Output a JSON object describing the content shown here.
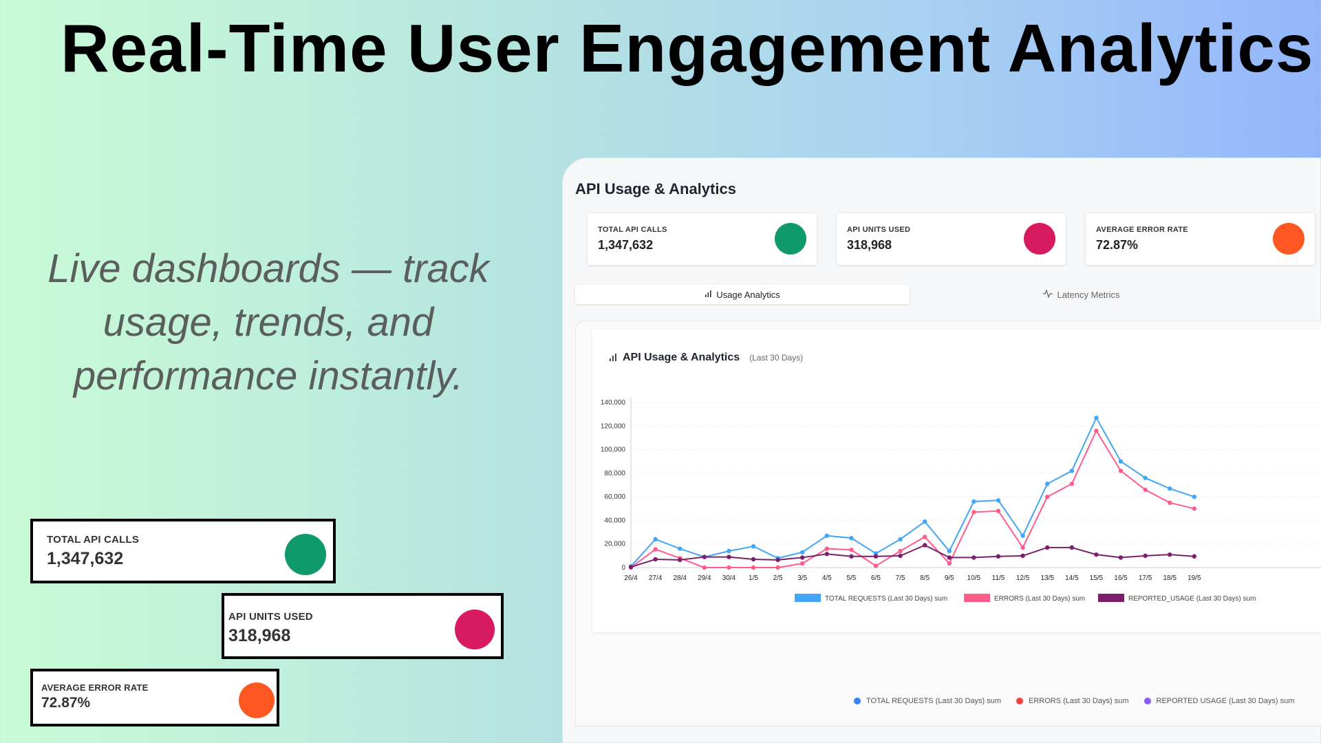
{
  "hero": {
    "title": "Real-Time User Engagement Analytics",
    "tagline_line1": "Live dashboards — track",
    "tagline_line2": "usage, trends, and",
    "tagline_line3": "performance instantly."
  },
  "colors": {
    "green": "#109a6b",
    "pink": "#d81b60",
    "orange": "#ff5722",
    "blue": "#42a5f5",
    "red": "#ff5c8a",
    "purple": "#7b1f6a"
  },
  "mini_cards": [
    {
      "label": "TOTAL API CALLS",
      "value": "1,347,632",
      "dot_color": "#109a6b"
    },
    {
      "label": "API UNITS USED",
      "value": "318,968",
      "dot_color": "#d81b60"
    },
    {
      "label": "AVERAGE ERROR RATE",
      "value": "72.87%",
      "dot_color": "#ff5722"
    }
  ],
  "panel": {
    "title": "API Usage & Analytics",
    "stats": [
      {
        "label": "TOTAL API CALLS",
        "value": "1,347,632",
        "dot_color": "#109a6b"
      },
      {
        "label": "API UNITS USED",
        "value": "318,968",
        "dot_color": "#d81b60"
      },
      {
        "label": "AVERAGE ERROR RATE",
        "value": "72.87%",
        "dot_color": "#ff5722"
      }
    ],
    "tabs": [
      {
        "label": "Usage Analytics",
        "icon": "bar-chart-icon"
      },
      {
        "label": "Latency Metrics",
        "icon": "pulse-icon"
      }
    ],
    "chart_title": "API Usage & Analytics",
    "chart_subtitle": "(Last 30 Days)",
    "legend_bottom": [
      {
        "label": "TOTAL REQUESTS (Last 30 Days) sum",
        "color": "#3b82f6"
      },
      {
        "label": "ERRORS (Last 30 Days) sum",
        "color": "#ef4444"
      },
      {
        "label": "REPORTED USAGE (Last 30 Days) sum",
        "color": "#8b5cf6"
      }
    ]
  },
  "chart_data": {
    "type": "line",
    "title": "API Usage & Analytics",
    "subtitle": "(Last 30 Days)",
    "x": [
      "26/4",
      "27/4",
      "28/4",
      "29/4",
      "30/4",
      "1/5",
      "2/5",
      "3/5",
      "4/5",
      "5/5",
      "6/5",
      "7/5",
      "8/5",
      "9/5",
      "10/5",
      "11/5",
      "12/5",
      "13/5",
      "14/5",
      "15/5",
      "16/5",
      "17/5",
      "18/5",
      "19/5"
    ],
    "ylim": [
      0,
      140000
    ],
    "yticks": [
      "0",
      "20,000",
      "40,000",
      "60,000",
      "80,000",
      "100,000",
      "120,000",
      "140,000"
    ],
    "grid": true,
    "legend_position": "bottom",
    "series": [
      {
        "name": "TOTAL REQUESTS (Last 30 Days) sum",
        "color": "#42a5f5",
        "values": [
          1000,
          24000,
          16000,
          9000,
          14000,
          18000,
          8000,
          13000,
          27000,
          25000,
          12000,
          24000,
          39000,
          14000,
          56000,
          57000,
          27000,
          71000,
          82000,
          127000,
          90000,
          76000,
          67000,
          60000
        ]
      },
      {
        "name": "ERRORS (Last 30 Days) sum",
        "color": "#ff5c8a",
        "values": [
          0,
          15500,
          8000,
          0,
          0,
          0,
          0,
          3500,
          16000,
          15000,
          1500,
          14000,
          26000,
          3500,
          47000,
          48000,
          17000,
          60000,
          71000,
          116000,
          82000,
          66000,
          55000,
          50000
        ]
      },
      {
        "name": "REPORTED_USAGE (Last 30 Days) sum",
        "color": "#7b1f6a",
        "values": [
          500,
          7000,
          6500,
          9000,
          9000,
          7000,
          6500,
          8500,
          11500,
          9500,
          9500,
          10000,
          19000,
          8500,
          8500,
          9500,
          10000,
          17000,
          17000,
          11000,
          8500,
          10000,
          11000,
          9500
        ]
      }
    ]
  }
}
